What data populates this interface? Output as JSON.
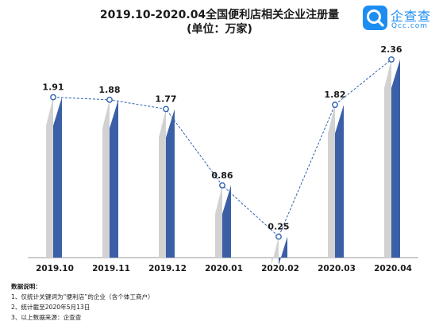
{
  "title_line1": "2019.10-2020.04全国便利店相关企业注册量",
  "title_line2": "(单位：万家)",
  "logo": {
    "name": "企查查",
    "domain": "Qcc.com",
    "color": "#1c8ef2"
  },
  "colors": {
    "bar_front": "#3a5fa6",
    "bar_side": "#d2d2d2",
    "line": "#2f63b0",
    "marker_fill": "#ffffff"
  },
  "notes": {
    "heading": "数据说明：",
    "items": [
      "1、仅统计关键词为“便利店”的企业（含个体工商户）",
      "2、统计截至2020年5月13日",
      "3、以上数据来源：企查查"
    ]
  },
  "chart_data": {
    "type": "bar",
    "overlay": "line",
    "categories": [
      "2019.10",
      "2019.11",
      "2019.12",
      "2020.01",
      "2020.02",
      "2020.03",
      "2020.04"
    ],
    "values": [
      1.91,
      1.88,
      1.77,
      0.86,
      0.25,
      1.82,
      2.36
    ],
    "title": "2019.10-2020.04全国便利店相关企业注册量",
    "subtitle": "(单位：万家)",
    "ylim": [
      0,
      2.36
    ],
    "grid": false,
    "legend": "none"
  }
}
